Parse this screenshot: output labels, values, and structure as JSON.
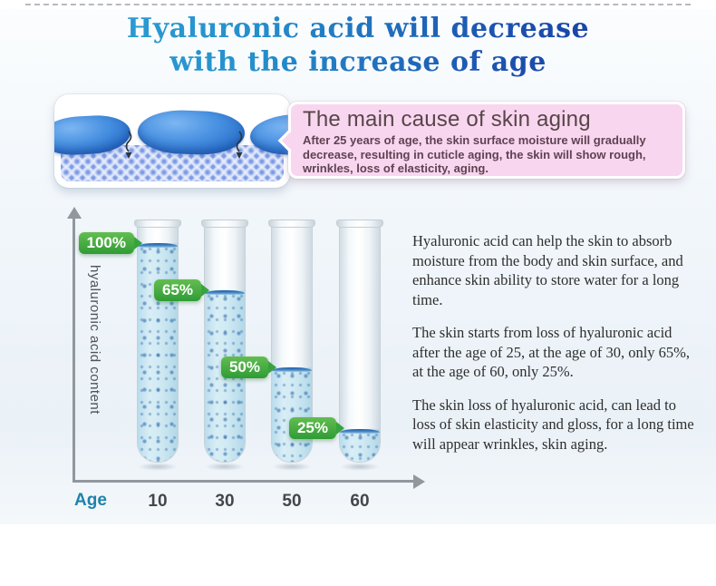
{
  "title": {
    "line1": "Hyaluronic acid will decrease",
    "line2": "with the increase of age"
  },
  "callout": {
    "heading": "The main cause of skin aging",
    "body": "After 25 years of age, the skin surface moisture will gradually decrease, resulting in cuticle aging, the skin will show rough, wrinkles, loss of elasticity, aging."
  },
  "right_column": {
    "paragraphs": [
      "Hyaluronic acid can help the skin to absorb moisture from the body and skin surface, and enhance skin ability to store water for a long time.",
      "The skin starts from loss of hyaluronic acid after the age of 25, at the age of 30, only 65%, at the age of 60, only 25%.",
      "The skin loss of hyaluronic acid, can lead to loss of skin elasticity and gloss, for a long time will appear wrinkles, skin aging."
    ]
  },
  "chart_data": {
    "type": "bar",
    "title": "",
    "xlabel": "Age",
    "ylabel": "hyaluronic acid content",
    "categories": [
      "10",
      "30",
      "50",
      "60"
    ],
    "values": [
      100,
      65,
      50,
      25
    ],
    "value_labels": [
      "100%",
      "65%",
      "50%",
      "25%"
    ],
    "tube_fill_visual_pct": [
      93,
      73,
      40,
      14
    ],
    "ylim": [
      0,
      100
    ],
    "grid": false,
    "legend": "none"
  },
  "icons": {
    "y_axis_arrow": "up-arrow",
    "x_axis_arrow": "right-arrow",
    "moisture_arrow": "wavy-down-arrow",
    "label_tail": "right-pointer"
  },
  "colors": {
    "title_gradient_from": "#2fa6da",
    "title_gradient_to": "#16349a",
    "callout_pink": "#f9d6ef",
    "label_green": "#2f9c35",
    "liquid_blue": "#cbe7f2",
    "axis_gray": "#90979d",
    "age_word_teal": "#1f82ab"
  }
}
